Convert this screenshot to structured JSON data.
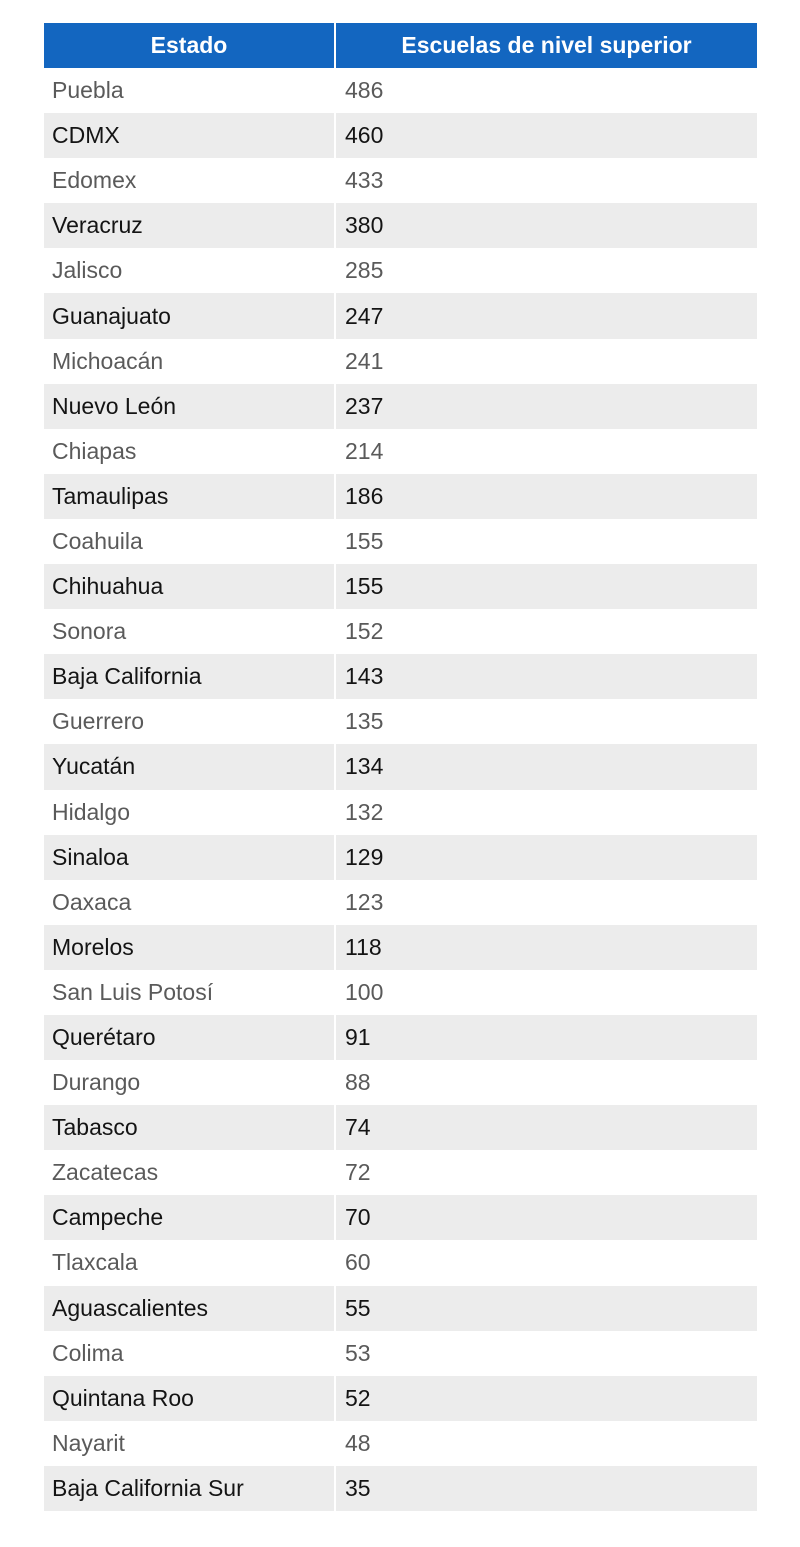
{
  "table": {
    "headers": [
      "Estado",
      "Escuelas de nivel superior"
    ],
    "rows": [
      [
        "Puebla",
        "486"
      ],
      [
        "CDMX",
        "460"
      ],
      [
        "Edomex",
        "433"
      ],
      [
        "Veracruz",
        "380"
      ],
      [
        "Jalisco",
        "285"
      ],
      [
        "Guanajuato",
        "247"
      ],
      [
        "Michoacán",
        "241"
      ],
      [
        "Nuevo León",
        "237"
      ],
      [
        "Chiapas",
        "214"
      ],
      [
        "Tamaulipas",
        "186"
      ],
      [
        "Coahuila",
        "155"
      ],
      [
        "Chihuahua",
        "155"
      ],
      [
        "Sonora",
        "152"
      ],
      [
        "Baja California",
        "143"
      ],
      [
        "Guerrero",
        "135"
      ],
      [
        "Yucatán",
        "134"
      ],
      [
        "Hidalgo",
        "132"
      ],
      [
        "Sinaloa",
        "129"
      ],
      [
        "Oaxaca",
        "123"
      ],
      [
        "Morelos",
        "118"
      ],
      [
        "San Luis Potosí",
        "100"
      ],
      [
        "Querétaro",
        "91"
      ],
      [
        "Durango",
        "88"
      ],
      [
        "Tabasco",
        "74"
      ],
      [
        "Zacatecas",
        "72"
      ],
      [
        "Campeche",
        "70"
      ],
      [
        "Tlaxcala",
        "60"
      ],
      [
        "Aguascalientes",
        "55"
      ],
      [
        "Colima",
        "53"
      ],
      [
        "Quintana Roo",
        "52"
      ],
      [
        "Nayarit",
        "48"
      ],
      [
        "Baja California Sur",
        "35"
      ]
    ]
  },
  "colors": {
    "header_bg": "#1366c0",
    "stripe_bg": "#ececec"
  }
}
